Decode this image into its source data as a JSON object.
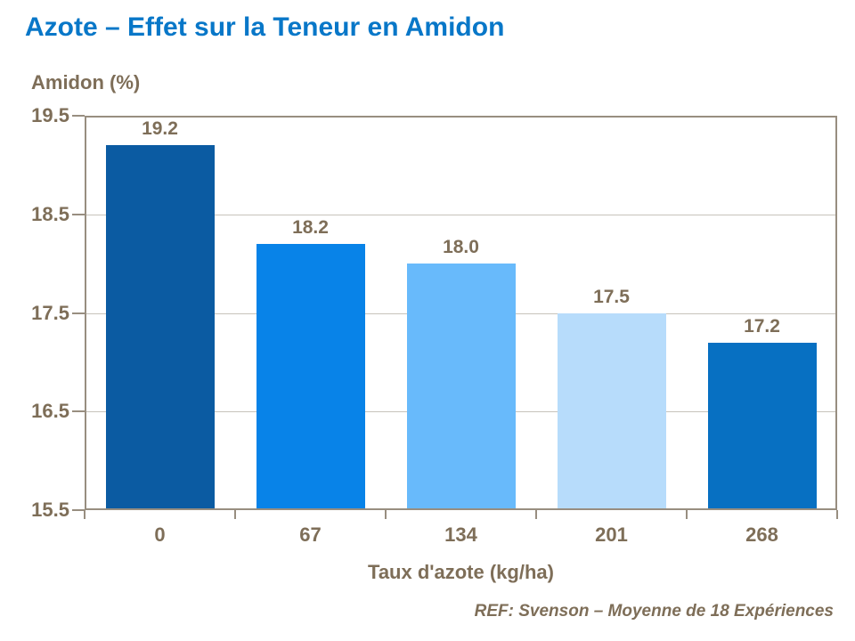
{
  "slide": {
    "title": "Azote – Effet sur la Teneur en Amidon",
    "footer": "REF: Svenson – Moyenne de 18 Expériences"
  },
  "colors": {
    "title": "#0877C8",
    "text_brown": "#7E6E58",
    "axis": "#988E80",
    "gridline": "#C7C3BB",
    "bars": [
      "#0B5BA2",
      "#0883E8",
      "#68BAFB",
      "#B7DCFB",
      "#0770C2"
    ]
  },
  "chart_data": {
    "type": "bar",
    "title": "Azote – Effet sur la Teneur en Amidon",
    "ylabel": "Amidon (%)",
    "xlabel": "Taux d'azote (kg/ha)",
    "categories": [
      "0",
      "67",
      "134",
      "201",
      "268"
    ],
    "values": [
      19.2,
      18.2,
      18.0,
      17.5,
      17.2
    ],
    "value_labels": [
      "19.2",
      "18.2",
      "18.0",
      "17.5",
      "17.2"
    ],
    "ylim": [
      15.5,
      19.5
    ],
    "yticks": [
      19.5,
      18.5,
      17.5,
      16.5,
      15.5
    ],
    "ytick_labels": [
      "19.5",
      "18.5",
      "17.5",
      "16.5",
      "15.5"
    ],
    "grid": "horizontal",
    "legend": "none",
    "annotation": "REF: Svenson – Moyenne de 18 Expériences"
  }
}
